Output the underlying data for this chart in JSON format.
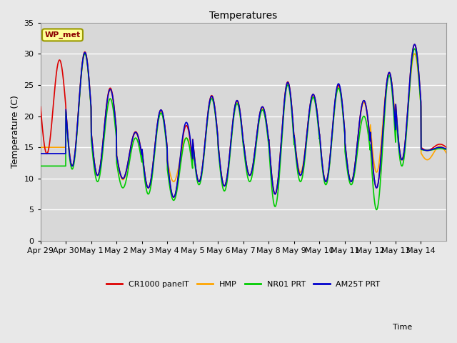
{
  "title": "Temperatures",
  "xlabel": "Time",
  "ylabel": "Temperature (C)",
  "ylim": [
    0,
    35
  ],
  "fig_bg_color": "#e8e8e8",
  "plot_bg_color": "#d8d8d8",
  "label_box_text": "WP_met",
  "legend_labels": [
    "CR1000 panelT",
    "HMP",
    "NR01 PRT",
    "AM25T PRT"
  ],
  "legend_colors": [
    "#dd0000",
    "#ffa500",
    "#00cc00",
    "#0000cc"
  ],
  "x_tick_labels": [
    "Apr 29",
    "Apr 30",
    "May 1",
    "May 2",
    "May 3",
    "May 4",
    "May 5",
    "May 6",
    "May 7",
    "May 8",
    "May 9",
    "May 10",
    "May 11",
    "May 12",
    "May 13",
    "May 14"
  ],
  "n_days": 16,
  "pts_per_day": 144,
  "daily_peaks_red": [
    29.0,
    30.3,
    24.5,
    17.5,
    21.0,
    18.5,
    23.3,
    22.5,
    21.5,
    25.5,
    23.5,
    25.0,
    22.5,
    27.0,
    31.5,
    15.5
  ],
  "daily_mins_red": [
    14.0,
    12.0,
    10.5,
    10.0,
    8.5,
    7.0,
    9.5,
    8.8,
    10.5,
    7.5,
    10.5,
    9.5,
    9.5,
    8.5,
    13.0,
    14.5
  ],
  "daily_peaks_orange": [
    15.0,
    30.0,
    24.2,
    17.3,
    20.8,
    16.5,
    23.0,
    22.3,
    21.2,
    25.2,
    23.2,
    24.8,
    22.2,
    26.8,
    30.0,
    15.2
  ],
  "daily_mins_orange": [
    15.0,
    12.0,
    10.5,
    9.8,
    8.5,
    9.5,
    9.5,
    8.8,
    10.5,
    7.5,
    11.0,
    9.5,
    9.5,
    11.0,
    13.0,
    13.0
  ],
  "daily_peaks_green": [
    12.0,
    30.0,
    22.8,
    16.5,
    20.5,
    16.5,
    22.8,
    22.0,
    21.0,
    25.0,
    23.0,
    24.5,
    20.0,
    26.5,
    30.8,
    14.8
  ],
  "daily_mins_green": [
    12.0,
    11.5,
    9.5,
    8.5,
    7.5,
    6.5,
    9.0,
    8.0,
    9.5,
    5.5,
    9.5,
    9.0,
    9.0,
    5.0,
    12.0,
    14.5
  ],
  "daily_peaks_blue": [
    14.0,
    30.2,
    24.3,
    17.4,
    21.0,
    19.0,
    23.2,
    22.5,
    21.5,
    25.4,
    23.5,
    25.2,
    22.5,
    27.0,
    31.5,
    15.0
  ],
  "daily_mins_blue": [
    14.0,
    12.0,
    10.5,
    10.0,
    8.5,
    7.0,
    9.5,
    8.8,
    10.5,
    7.5,
    10.5,
    9.5,
    9.5,
    8.5,
    13.0,
    14.5
  ],
  "peak_hour": 0.58,
  "min_hour": 0.25,
  "linewidth": 1.2
}
